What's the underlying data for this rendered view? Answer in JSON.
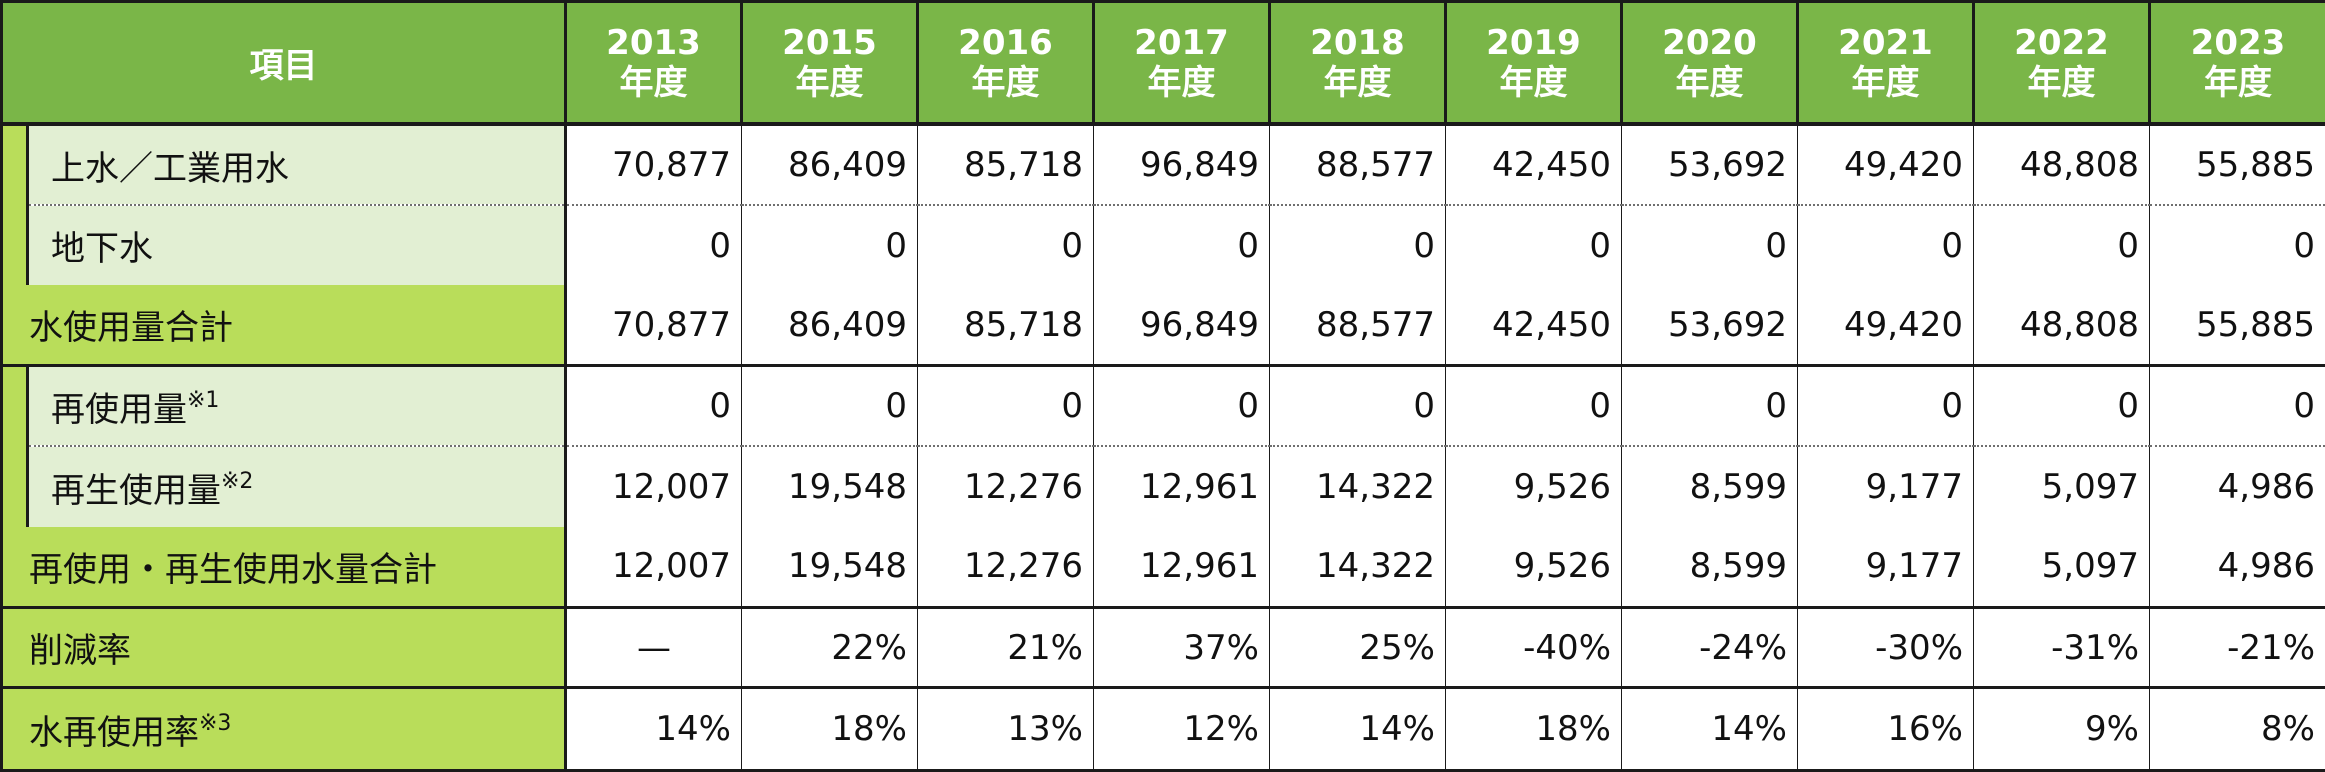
{
  "header": {
    "item_label": "項目",
    "years": [
      {
        "year": "2013",
        "suffix": "年度"
      },
      {
        "year": "2015",
        "suffix": "年度"
      },
      {
        "year": "2016",
        "suffix": "年度"
      },
      {
        "year": "2017",
        "suffix": "年度"
      },
      {
        "year": "2018",
        "suffix": "年度"
      },
      {
        "year": "2019",
        "suffix": "年度"
      },
      {
        "year": "2020",
        "suffix": "年度"
      },
      {
        "year": "2021",
        "suffix": "年度"
      },
      {
        "year": "2022",
        "suffix": "年度"
      },
      {
        "year": "2023",
        "suffix": "年度"
      }
    ]
  },
  "rows": {
    "city_water": {
      "label": "上水／工業用水",
      "values": [
        "70,877",
        "86,409",
        "85,718",
        "96,849",
        "88,577",
        "42,450",
        "53,692",
        "49,420",
        "48,808",
        "55,885"
      ]
    },
    "groundwater": {
      "label": "地下水",
      "values": [
        "0",
        "0",
        "0",
        "0",
        "0",
        "0",
        "0",
        "0",
        "0",
        "0"
      ]
    },
    "water_total": {
      "label": "水使用量合計",
      "values": [
        "70,877",
        "86,409",
        "85,718",
        "96,849",
        "88,577",
        "42,450",
        "53,692",
        "49,420",
        "48,808",
        "55,885"
      ]
    },
    "reuse": {
      "label": "再使用量",
      "note": "※1",
      "values": [
        "0",
        "0",
        "0",
        "0",
        "0",
        "0",
        "0",
        "0",
        "0",
        "0"
      ]
    },
    "recycled": {
      "label": "再生使用量",
      "note": "※2",
      "values": [
        "12,007",
        "19,548",
        "12,276",
        "12,961",
        "14,322",
        "9,526",
        "8,599",
        "9,177",
        "5,097",
        "4,986"
      ]
    },
    "reuse_total": {
      "label": "再使用・再生使用水量合計",
      "values": [
        "12,007",
        "19,548",
        "12,276",
        "12,961",
        "14,322",
        "9,526",
        "8,599",
        "9,177",
        "5,097",
        "4,986"
      ]
    },
    "reduction_rate": {
      "label": "削減率",
      "values": [
        "—",
        "22%",
        "21%",
        "37%",
        "25%",
        "-40%",
        "-24%",
        "-30%",
        "-31%",
        "-21%"
      ]
    },
    "reuse_rate": {
      "label": "水再使用率",
      "note": "※3",
      "values": [
        "14%",
        "18%",
        "13%",
        "12%",
        "14%",
        "18%",
        "14%",
        "16%",
        "9%",
        "8%"
      ]
    }
  }
}
